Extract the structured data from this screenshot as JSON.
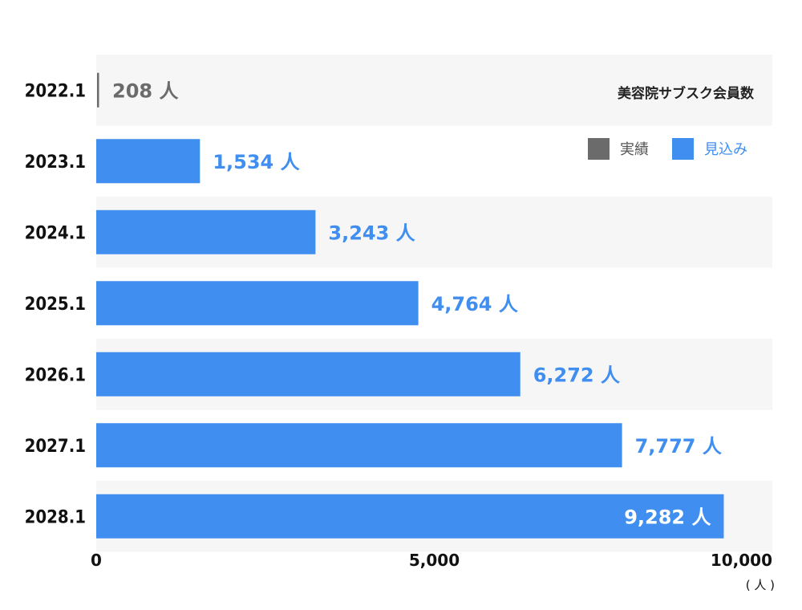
{
  "chart_data": {
    "type": "bar",
    "orientation": "horizontal",
    "title": "美容院サブスク会員数",
    "categories": [
      "2022.1",
      "2023.1",
      "2024.1",
      "2025.1",
      "2026.1",
      "2027.1",
      "2028.1"
    ],
    "values": [
      208,
      1534,
      3243,
      4764,
      6272,
      7777,
      9282
    ],
    "value_labels": [
      "208 人",
      "1,534 人",
      "3,243 人",
      "4,764 人",
      "6,272 人",
      "7,777 人",
      "9,282 人"
    ],
    "bar_series": [
      "実績",
      "見込み",
      "見込み",
      "見込み",
      "見込み",
      "見込み",
      "見込み"
    ],
    "series": [
      {
        "name": "実績",
        "color": "#6b6b6b"
      },
      {
        "name": "見込み",
        "color": "#3f8ef0"
      }
    ],
    "xlim": [
      0,
      10000
    ],
    "x_ticks": [
      "0",
      "5,000",
      "10,000"
    ],
    "x_tick_values": [
      0,
      5000,
      10000
    ],
    "x_unit": "( 人 )",
    "legend_position": "top-right",
    "row_colors": [
      "#f6f6f6",
      "#ffffff"
    ]
  }
}
